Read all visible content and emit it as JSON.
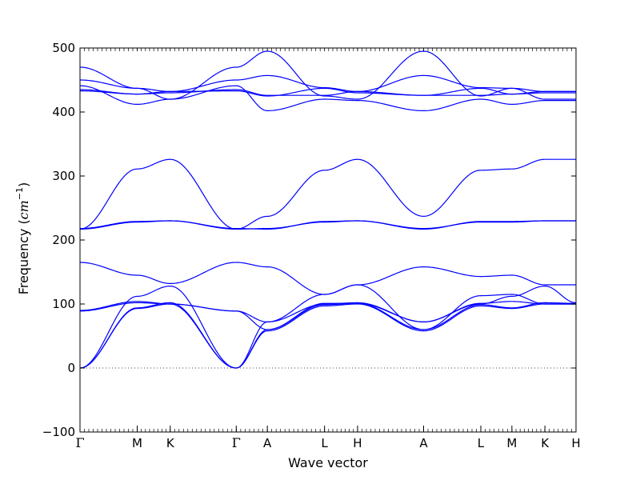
{
  "chart_data": {
    "type": "line",
    "title": "",
    "xlabel": "Wave vector",
    "ylabel_text": "Frequency (",
    "ylabel_unit_base": "cm",
    "ylabel_unit_exp": "−1",
    "ylabel_close": ")",
    "ylim": [
      -100,
      500
    ],
    "yticks": [
      -100,
      0,
      100,
      200,
      300,
      400,
      500
    ],
    "grid": false,
    "zero_line": {
      "style": "dotted",
      "value": 0
    },
    "line_color": "#0000ff",
    "x_points": [
      {
        "label": "Γ",
        "x": 0.0
      },
      {
        "label": "M",
        "x": 0.745
      },
      {
        "label": "K",
        "x": 1.175
      },
      {
        "label": "Γ",
        "x": 2.035
      },
      {
        "label": "A",
        "x": 2.44
      },
      {
        "label": "L",
        "x": 3.185
      },
      {
        "label": "H",
        "x": 3.615
      },
      {
        "label": "A",
        "x": 4.475
      },
      {
        "label": "L",
        "x": 5.22
      },
      {
        "label": "M",
        "x": 5.625
      },
      {
        "label": "K",
        "x": 6.055
      },
      {
        "label": "H",
        "x": 6.46
      }
    ],
    "series": [
      {
        "values": [
          0,
          93,
          100,
          0,
          58,
          97,
          100,
          58,
          97,
          93,
          100,
          100
        ]
      },
      {
        "values": [
          0,
          94,
          102,
          0,
          60,
          99,
          101,
          60,
          99,
          94,
          102,
          101
        ]
      },
      {
        "values": [
          0,
          112,
          128,
          0,
          72,
          100,
          102,
          72,
          100,
          112,
          128,
          102
        ]
      },
      {
        "values": [
          89,
          102,
          100,
          89,
          72,
          115,
          130,
          158,
          143,
          145,
          130,
          130
        ]
      },
      {
        "values": [
          165,
          145,
          132,
          165,
          158,
          115,
          130,
          60,
          113,
          115,
          100,
          100
        ]
      },
      {
        "values": [
          90,
          104,
          100,
          89,
          60,
          101,
          101,
          72,
          101,
          104,
          100,
          100
        ]
      },
      {
        "values": [
          217,
          311,
          326,
          217,
          237,
          309,
          326,
          237,
          309,
          311,
          326,
          326
        ]
      },
      {
        "values": [
          217,
          228,
          230,
          217,
          218,
          228,
          230,
          218,
          228,
          228,
          230,
          230
        ]
      },
      {
        "values": [
          218,
          229,
          230,
          218,
          217,
          229,
          230,
          217,
          229,
          229,
          230,
          230
        ]
      },
      {
        "values": [
          470,
          437,
          420,
          470,
          495,
          425,
          420,
          495,
          425,
          437,
          420,
          420
        ]
      },
      {
        "values": [
          441,
          412,
          420,
          441,
          402,
          420,
          418,
          402,
          420,
          412,
          418,
          418
        ]
      },
      {
        "values": [
          450,
          437,
          432,
          450,
          457,
          438,
          432,
          457,
          438,
          437,
          432,
          432
        ]
      },
      {
        "values": [
          435,
          428,
          430,
          435,
          426,
          426,
          432,
          426,
          426,
          428,
          430,
          430
        ]
      },
      {
        "values": [
          433,
          428,
          432,
          433,
          425,
          437,
          430,
          426,
          437,
          428,
          432,
          432
        ]
      }
    ]
  }
}
